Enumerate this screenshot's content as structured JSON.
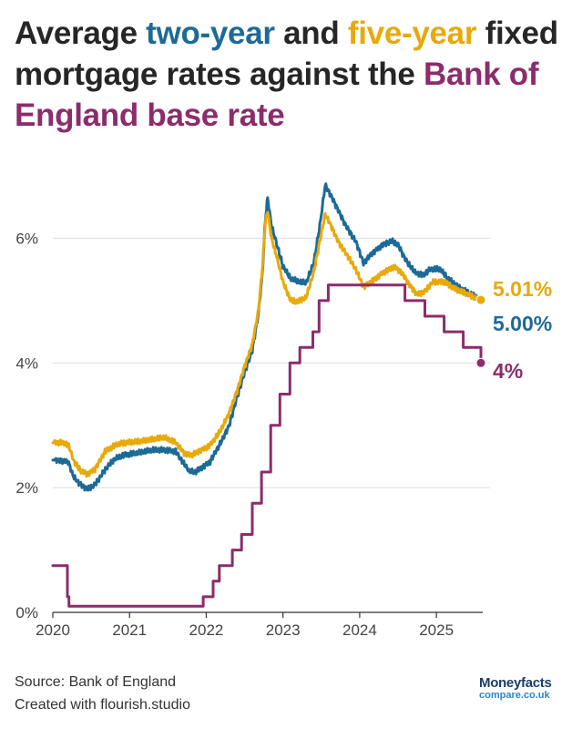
{
  "title": {
    "p1": "Average ",
    "two_year": "two-year",
    "p2": " and ",
    "five_year": "five-year",
    "p3": " fixed mortgage rates against the ",
    "boe": "Bank of England base rate"
  },
  "colors": {
    "two_year": "#1d6a97",
    "five_year": "#e8a90b",
    "base_rate": "#8c2c6c",
    "grid": "#dddddd"
  },
  "chart_data": {
    "type": "line",
    "title": "Average two-year and five-year fixed mortgage rates against the Bank of England base rate",
    "xlabel": "",
    "ylabel": "",
    "xlim": [
      2020.0,
      2025.58
    ],
    "ylim": [
      0,
      7
    ],
    "x_ticks": [
      2020,
      2021,
      2022,
      2023,
      2024,
      2025
    ],
    "x_tick_labels": [
      "2020",
      "2021",
      "2022",
      "2023",
      "2024",
      "2025"
    ],
    "y_ticks": [
      0,
      2,
      4,
      6
    ],
    "y_tick_labels": [
      "0%",
      "2%",
      "4%",
      "6%"
    ],
    "grid": true,
    "legend": "none (end labels)",
    "series": [
      {
        "name": "Two-year fixed",
        "color": "#1d6a97",
        "end_label": "5.00%",
        "points": [
          [
            2020.0,
            2.44
          ],
          [
            2020.1,
            2.44
          ],
          [
            2020.2,
            2.42
          ],
          [
            2020.26,
            2.2
          ],
          [
            2020.33,
            2.08
          ],
          [
            2020.45,
            1.98
          ],
          [
            2020.55,
            2.05
          ],
          [
            2020.7,
            2.32
          ],
          [
            2020.8,
            2.45
          ],
          [
            2020.92,
            2.52
          ],
          [
            2021.1,
            2.55
          ],
          [
            2021.3,
            2.6
          ],
          [
            2021.45,
            2.6
          ],
          [
            2021.6,
            2.58
          ],
          [
            2021.7,
            2.4
          ],
          [
            2021.78,
            2.26
          ],
          [
            2021.85,
            2.25
          ],
          [
            2021.95,
            2.33
          ],
          [
            2022.05,
            2.42
          ],
          [
            2022.18,
            2.7
          ],
          [
            2022.3,
            3.0
          ],
          [
            2022.4,
            3.45
          ],
          [
            2022.5,
            3.85
          ],
          [
            2022.6,
            4.2
          ],
          [
            2022.68,
            4.8
          ],
          [
            2022.73,
            5.4
          ],
          [
            2022.77,
            6.3
          ],
          [
            2022.8,
            6.65
          ],
          [
            2022.85,
            6.2
          ],
          [
            2022.92,
            5.9
          ],
          [
            2023.0,
            5.55
          ],
          [
            2023.1,
            5.35
          ],
          [
            2023.2,
            5.3
          ],
          [
            2023.3,
            5.28
          ],
          [
            2023.4,
            5.6
          ],
          [
            2023.48,
            6.2
          ],
          [
            2023.55,
            6.85
          ],
          [
            2023.62,
            6.7
          ],
          [
            2023.72,
            6.45
          ],
          [
            2023.82,
            6.2
          ],
          [
            2023.95,
            5.95
          ],
          [
            2024.05,
            5.6
          ],
          [
            2024.15,
            5.75
          ],
          [
            2024.3,
            5.9
          ],
          [
            2024.42,
            5.95
          ],
          [
            2024.5,
            5.9
          ],
          [
            2024.6,
            5.65
          ],
          [
            2024.72,
            5.45
          ],
          [
            2024.82,
            5.4
          ],
          [
            2024.92,
            5.5
          ],
          [
            2025.05,
            5.5
          ],
          [
            2025.15,
            5.35
          ],
          [
            2025.3,
            5.2
          ],
          [
            2025.45,
            5.1
          ],
          [
            2025.58,
            5.0
          ]
        ]
      },
      {
        "name": "Five-year fixed",
        "color": "#e8a90b",
        "end_label": "5.01%",
        "points": [
          [
            2020.0,
            2.72
          ],
          [
            2020.1,
            2.73
          ],
          [
            2020.2,
            2.7
          ],
          [
            2020.28,
            2.4
          ],
          [
            2020.36,
            2.28
          ],
          [
            2020.45,
            2.22
          ],
          [
            2020.55,
            2.3
          ],
          [
            2020.68,
            2.58
          ],
          [
            2020.82,
            2.68
          ],
          [
            2020.95,
            2.72
          ],
          [
            2021.15,
            2.74
          ],
          [
            2021.35,
            2.78
          ],
          [
            2021.45,
            2.8
          ],
          [
            2021.6,
            2.72
          ],
          [
            2021.72,
            2.55
          ],
          [
            2021.8,
            2.52
          ],
          [
            2021.92,
            2.6
          ],
          [
            2022.05,
            2.68
          ],
          [
            2022.18,
            2.9
          ],
          [
            2022.3,
            3.2
          ],
          [
            2022.4,
            3.55
          ],
          [
            2022.5,
            3.95
          ],
          [
            2022.6,
            4.3
          ],
          [
            2022.68,
            4.85
          ],
          [
            2022.73,
            5.5
          ],
          [
            2022.77,
            6.25
          ],
          [
            2022.8,
            6.45
          ],
          [
            2022.85,
            6.0
          ],
          [
            2022.92,
            5.7
          ],
          [
            2023.0,
            5.3
          ],
          [
            2023.1,
            5.0
          ],
          [
            2023.2,
            4.98
          ],
          [
            2023.3,
            5.05
          ],
          [
            2023.4,
            5.45
          ],
          [
            2023.48,
            5.95
          ],
          [
            2023.55,
            6.38
          ],
          [
            2023.62,
            6.22
          ],
          [
            2023.72,
            5.95
          ],
          [
            2023.85,
            5.7
          ],
          [
            2023.95,
            5.5
          ],
          [
            2024.05,
            5.22
          ],
          [
            2024.15,
            5.3
          ],
          [
            2024.3,
            5.45
          ],
          [
            2024.45,
            5.55
          ],
          [
            2024.55,
            5.45
          ],
          [
            2024.65,
            5.25
          ],
          [
            2024.75,
            5.1
          ],
          [
            2024.85,
            5.15
          ],
          [
            2024.95,
            5.3
          ],
          [
            2025.1,
            5.3
          ],
          [
            2025.25,
            5.18
          ],
          [
            2025.4,
            5.1
          ],
          [
            2025.58,
            5.01
          ]
        ]
      },
      {
        "name": "Bank of England base rate",
        "color": "#8c2c6c",
        "end_label": "4%",
        "step": true,
        "points": [
          [
            2020.0,
            0.75
          ],
          [
            2020.19,
            0.75
          ],
          [
            2020.19,
            0.25
          ],
          [
            2020.21,
            0.25
          ],
          [
            2020.21,
            0.1
          ],
          [
            2021.96,
            0.1
          ],
          [
            2021.96,
            0.25
          ],
          [
            2022.09,
            0.25
          ],
          [
            2022.09,
            0.5
          ],
          [
            2022.17,
            0.5
          ],
          [
            2022.17,
            0.75
          ],
          [
            2022.34,
            0.75
          ],
          [
            2022.34,
            1.0
          ],
          [
            2022.46,
            1.0
          ],
          [
            2022.46,
            1.25
          ],
          [
            2022.6,
            1.25
          ],
          [
            2022.6,
            1.75
          ],
          [
            2022.72,
            1.75
          ],
          [
            2022.72,
            2.25
          ],
          [
            2022.84,
            2.25
          ],
          [
            2022.84,
            3.0
          ],
          [
            2022.96,
            3.0
          ],
          [
            2022.96,
            3.5
          ],
          [
            2023.09,
            3.5
          ],
          [
            2023.09,
            4.0
          ],
          [
            2023.22,
            4.0
          ],
          [
            2023.22,
            4.25
          ],
          [
            2023.39,
            4.25
          ],
          [
            2023.39,
            4.5
          ],
          [
            2023.47,
            4.5
          ],
          [
            2023.47,
            5.0
          ],
          [
            2023.59,
            5.0
          ],
          [
            2023.59,
            5.25
          ],
          [
            2024.59,
            5.25
          ],
          [
            2024.59,
            5.0
          ],
          [
            2024.85,
            5.0
          ],
          [
            2024.85,
            4.75
          ],
          [
            2025.1,
            4.75
          ],
          [
            2025.1,
            4.5
          ],
          [
            2025.35,
            4.5
          ],
          [
            2025.35,
            4.25
          ],
          [
            2025.58,
            4.25
          ],
          [
            2025.58,
            4.0
          ]
        ]
      }
    ]
  },
  "footer": {
    "source": "Source: Bank of England",
    "credit": "Created with flourish.studio"
  },
  "logo": {
    "line1": "Moneyfacts",
    "line2": "compare.co.uk"
  }
}
